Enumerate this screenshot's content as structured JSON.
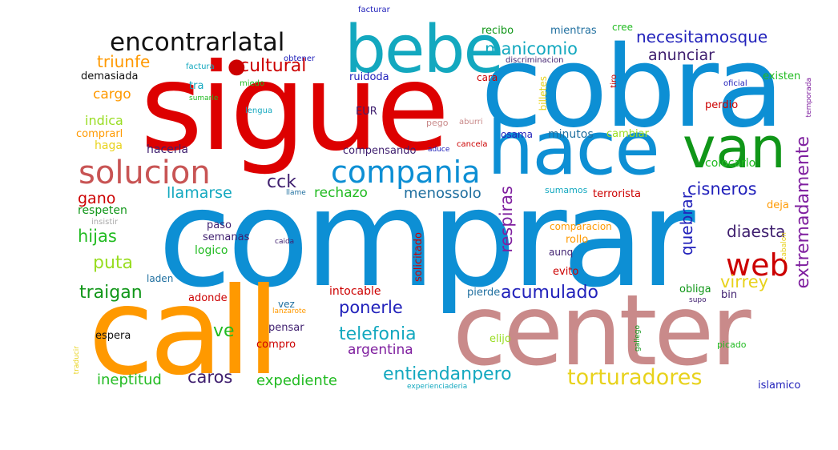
{
  "words": [
    {
      "text": "comprar",
      "color": "#0d8fd4"
    },
    {
      "text": "sigue",
      "color": "#dd0000"
    },
    {
      "text": "cobra",
      "color": "#0d8fd4"
    },
    {
      "text": "call",
      "color": "#ff9900"
    },
    {
      "text": "center",
      "color": "#c98a8a"
    },
    {
      "text": "hace",
      "color": "#0d8fd4"
    },
    {
      "text": "bebe",
      "color": "#13a8bf"
    },
    {
      "text": "van",
      "color": "#109618"
    },
    {
      "text": "solucion",
      "color": "#c85454"
    },
    {
      "text": "compania",
      "color": "#0d8fd4"
    },
    {
      "text": "encontrarlatal",
      "color": "#111111"
    },
    {
      "text": "web",
      "color": "#cc0000"
    },
    {
      "text": "torturadores",
      "color": "#e8d21c"
    },
    {
      "text": "entiendanpero",
      "color": "#13a8bf"
    },
    {
      "text": "necesitamosque",
      "color": "#2222bb"
    },
    {
      "text": "cultural",
      "color": "#cc0000"
    },
    {
      "text": "manicomio",
      "color": "#13a8bf"
    },
    {
      "text": "telefonia",
      "color": "#13a8bf"
    },
    {
      "text": "acumulado",
      "color": "#2222bb"
    },
    {
      "text": "extremadamente",
      "color": "#7f1f9f"
    },
    {
      "text": "respiras",
      "color": "#7f1f9f"
    },
    {
      "text": "quebrar",
      "color": "#2222bb"
    },
    {
      "text": "anunciar",
      "color": "#3f1f6f"
    },
    {
      "text": "cisneros",
      "color": "#2222bb"
    },
    {
      "text": "diaesta",
      "color": "#3f1f6f"
    },
    {
      "text": "virrey",
      "color": "#e8d21c"
    },
    {
      "text": "ponerle",
      "color": "#2222bb"
    },
    {
      "text": "traigan",
      "color": "#109618"
    },
    {
      "text": "puta",
      "color": "#99dd22"
    },
    {
      "text": "hijas",
      "color": "#22bb22"
    },
    {
      "text": "gano",
      "color": "#cc0000"
    },
    {
      "text": "llamarse",
      "color": "#13a8bf"
    },
    {
      "text": "cck",
      "color": "#3f1f6f"
    },
    {
      "text": "rechazo",
      "color": "#22bb22"
    },
    {
      "text": "menossolo",
      "color": "#1f6f9f"
    },
    {
      "text": "triunfe",
      "color": "#ff9900"
    },
    {
      "text": "caros",
      "color": "#3f1f6f"
    },
    {
      "text": "expediente",
      "color": "#22bb22"
    },
    {
      "text": "ineptitud",
      "color": "#22bb22"
    },
    {
      "text": "argentina",
      "color": "#7f1f9f"
    },
    {
      "text": "ve",
      "color": "#22bb22"
    },
    {
      "text": "cargo",
      "color": "#ff9900"
    },
    {
      "text": "indica",
      "color": "#99dd22"
    },
    {
      "text": "comprarl",
      "color": "#ff9900"
    },
    {
      "text": "haga",
      "color": "#e8d21c"
    },
    {
      "text": "demasiada",
      "color": "#111111"
    },
    {
      "text": "tra",
      "color": "#13a8bf"
    },
    {
      "text": "respeten",
      "color": "#109618"
    },
    {
      "text": "ruidoda",
      "color": "#2222bb"
    },
    {
      "text": "recibo",
      "color": "#109618"
    },
    {
      "text": "mientras",
      "color": "#1f6f9f"
    },
    {
      "text": "cree",
      "color": "#22bb22"
    },
    {
      "text": "existen",
      "color": "#22bb22"
    },
    {
      "text": "cara",
      "color": "#cc0000"
    },
    {
      "text": "EUR",
      "color": "#3f1f6f"
    },
    {
      "text": "pego",
      "color": "#c98a8a"
    },
    {
      "text": "osama",
      "color": "#2222bb"
    },
    {
      "text": "minutos",
      "color": "#1f6f9f"
    },
    {
      "text": "cambiar",
      "color": "#99dd22"
    },
    {
      "text": "perdio",
      "color": "#cc0000"
    },
    {
      "text": "compensando",
      "color": "#3f1f6f"
    },
    {
      "text": "hacerla",
      "color": "#3f1f6f"
    },
    {
      "text": "colocarlo",
      "color": "#22bb22"
    },
    {
      "text": "terrorista",
      "color": "#cc0000"
    },
    {
      "text": "sumamos",
      "color": "#13a8bf"
    },
    {
      "text": "deja",
      "color": "#ff9900"
    },
    {
      "text": "paso",
      "color": "#3f1f6f"
    },
    {
      "text": "semanas",
      "color": "#3f1f6f"
    },
    {
      "text": "logico",
      "color": "#22bb22"
    },
    {
      "text": "laden",
      "color": "#1f6f9f"
    },
    {
      "text": "adonde",
      "color": "#cc0000"
    },
    {
      "text": "intocable",
      "color": "#cc0000"
    },
    {
      "text": "comparacion",
      "color": "#ff9900"
    },
    {
      "text": "rollo",
      "color": "#ff9900"
    },
    {
      "text": "aunq",
      "color": "#3f1f6f"
    },
    {
      "text": "evito",
      "color": "#cc0000"
    },
    {
      "text": "pierde",
      "color": "#1f6f9f"
    },
    {
      "text": "obliga",
      "color": "#109618"
    },
    {
      "text": "bin",
      "color": "#3f1f6f"
    },
    {
      "text": "vez",
      "color": "#1f6f9f"
    },
    {
      "text": "pensar",
      "color": "#3f1f6f"
    },
    {
      "text": "compro",
      "color": "#cc0000"
    },
    {
      "text": "espera",
      "color": "#111111"
    },
    {
      "text": "elijo",
      "color": "#99dd22"
    },
    {
      "text": "picado",
      "color": "#22bb22"
    },
    {
      "text": "islamico",
      "color": "#2222bb"
    },
    {
      "text": "solicitado",
      "color": "#cc0000"
    },
    {
      "text": "caida",
      "color": "#3f1f6f"
    },
    {
      "text": "insistir",
      "color": "#aaaaaa"
    },
    {
      "text": "llame",
      "color": "#1f6f9f"
    },
    {
      "text": "facturar",
      "color": "#2222bb"
    },
    {
      "text": "obtener",
      "color": "#2222bb"
    },
    {
      "text": "factura",
      "color": "#13a8bf"
    },
    {
      "text": "miedo",
      "color": "#22bb22"
    },
    {
      "text": "discriminacion",
      "color": "#3f1f6f"
    },
    {
      "text": "tiro",
      "color": "#cc0000"
    },
    {
      "text": "oficial",
      "color": "#2222bb"
    },
    {
      "text": "temporada",
      "color": "#7f1f9f"
    },
    {
      "text": "sumarle",
      "color": "#22bb22"
    },
    {
      "text": "lengua",
      "color": "#13a8bf"
    },
    {
      "text": "billetes",
      "color": "#e8d21c"
    },
    {
      "text": "aburri",
      "color": "#c98a8a"
    },
    {
      "text": "cancela",
      "color": "#cc0000"
    },
    {
      "text": "aduce",
      "color": "#2222bb"
    },
    {
      "text": "traducir",
      "color": "#e8d21c"
    },
    {
      "text": "experienciaderia",
      "color": "#13a8bf"
    },
    {
      "text": "lanzarote",
      "color": "#ff9900"
    },
    {
      "text": "supo",
      "color": "#3f1f6f"
    },
    {
      "text": "gallego",
      "color": "#109618"
    },
    {
      "text": "cabalon",
      "color": "#e8d21c"
    }
  ]
}
